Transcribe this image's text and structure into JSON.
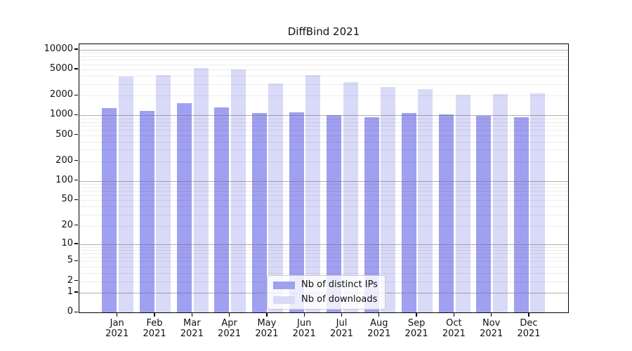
{
  "chart_data": {
    "type": "bar",
    "title": "DiffBind 2021",
    "categories": [
      "Jan",
      "Feb",
      "Mar",
      "Apr",
      "May",
      "Jun",
      "Jul",
      "Aug",
      "Sep",
      "Oct",
      "Nov",
      "Dec"
    ],
    "x_tick_second_line": "2021",
    "series": [
      {
        "name": "Nb of distinct IPs",
        "color": "#a0a0f0",
        "values": [
          1230,
          1120,
          1450,
          1260,
          1045,
          1070,
          970,
          890,
          1045,
          980,
          950,
          900
        ]
      },
      {
        "name": "Nb of downloads",
        "color": "#d9d9f8",
        "values": [
          3730,
          3890,
          5050,
          4800,
          2920,
          3950,
          3090,
          2580,
          2380,
          1980,
          2030,
          2080
        ]
      }
    ],
    "y_ticks": [
      0,
      1,
      2,
      5,
      10,
      20,
      50,
      100,
      200,
      500,
      1000,
      2000,
      5000,
      10000
    ],
    "y_scale": "log(value+1)",
    "ylim": [
      0,
      12000
    ],
    "grid": true,
    "legend_position": "bottom-center",
    "colors": {
      "major_gridline": "#b5b5b5",
      "minor_gridline": "#ededed",
      "axis": "#000000",
      "background": "#ffffff"
    }
  }
}
